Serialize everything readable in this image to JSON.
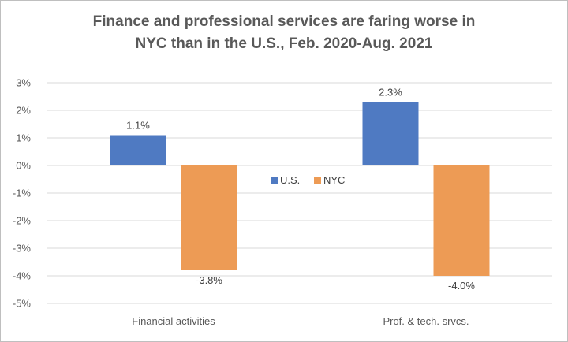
{
  "chart_data": {
    "type": "bar",
    "title": "Finance and professional services are faring worse in\nNYC than in the U.S., Feb. 2020-Aug. 2021",
    "categories": [
      "Financial activities",
      "Prof. & tech. srvcs."
    ],
    "series": [
      {
        "name": "U.S.",
        "values": [
          1.1,
          2.3
        ],
        "labels": [
          "1.1%",
          "2.3%"
        ],
        "color": "#4f7ac2"
      },
      {
        "name": "NYC",
        "values": [
          -3.8,
          -4.0
        ],
        "labels": [
          "-3.8%",
          "-4.0%"
        ],
        "color": "#ed9b55"
      }
    ],
    "ylim": [
      -5,
      3
    ],
    "yticks": [
      3,
      2,
      1,
      0,
      -1,
      -2,
      -3,
      -4,
      -5
    ],
    "ytick_labels": [
      "3%",
      "2%",
      "1%",
      "0%",
      "-1%",
      "-2%",
      "-3%",
      "-4%",
      "-5%"
    ],
    "grid": true,
    "legend": "center"
  }
}
